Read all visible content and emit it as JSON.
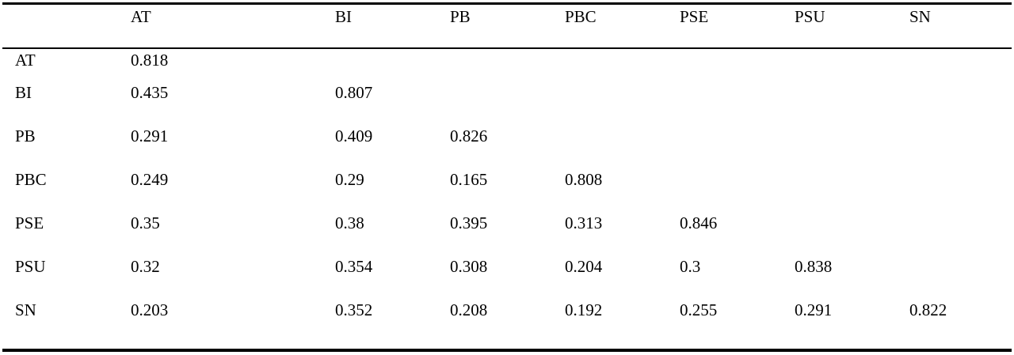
{
  "table": {
    "corner_label": "",
    "column_headers": [
      "AT",
      "BI",
      "PB",
      "PBC",
      "PSE",
      "PSU",
      "SN"
    ],
    "rows": [
      {
        "label": "AT",
        "values": [
          "0.818",
          "",
          "",
          "",
          "",
          "",
          ""
        ]
      },
      {
        "label": "BI",
        "values": [
          "0.435",
          "0.807",
          "",
          "",
          "",
          "",
          ""
        ]
      },
      {
        "label": "PB",
        "values": [
          "0.291",
          "0.409",
          "0.826",
          "",
          "",
          "",
          ""
        ]
      },
      {
        "label": "PBC",
        "values": [
          "0.249",
          "0.29",
          "0.165",
          "0.808",
          "",
          "",
          ""
        ]
      },
      {
        "label": "PSE",
        "values": [
          "0.35",
          "0.38",
          "0.395",
          "0.313",
          "0.846",
          "",
          ""
        ]
      },
      {
        "label": "PSU",
        "values": [
          "0.32",
          "0.354",
          "0.308",
          "0.204",
          "0.3",
          "0.838",
          ""
        ]
      },
      {
        "label": "SN",
        "values": [
          "0.203",
          "0.352",
          "0.208",
          "0.192",
          "0.255",
          "0.291",
          "0.822"
        ]
      }
    ]
  }
}
